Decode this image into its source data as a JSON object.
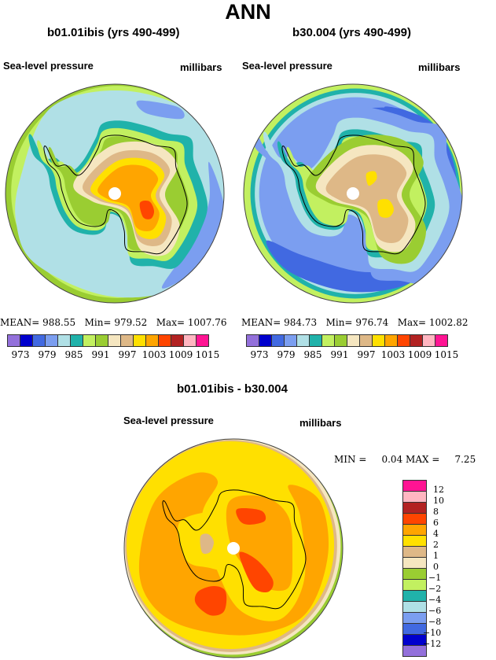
{
  "figure": {
    "title": "ANN",
    "variable": "Sea-level pressure",
    "units": "millibars"
  },
  "panels": [
    {
      "id": "case1",
      "title": "b01.01ibis (yrs 490-499)",
      "variable": "Sea-level pressure",
      "units": "millibars",
      "stats": {
        "mean_label": "MEAN=",
        "mean": "988.55",
        "min_label": "Min=",
        "min": "979.52",
        "max_label": "Max=",
        "max": "1007.76"
      }
    },
    {
      "id": "case2",
      "title": "b30.004 (yrs 490-499)",
      "variable": "Sea-level pressure",
      "units": "millibars",
      "stats": {
        "mean_label": "MEAN=",
        "mean": "984.73",
        "min_label": "Min=",
        "min": "976.74",
        "max_label": "Max=",
        "max": "1002.82"
      }
    },
    {
      "id": "diff",
      "title": "b01.01ibis - b30.004",
      "variable": "Sea-level pressure",
      "units": "millibars",
      "stats": {
        "min_label": "MIN =",
        "min": "0.04",
        "max_label": "MAX =",
        "max": "7.25"
      }
    }
  ],
  "colorbar_abs": {
    "colors": [
      "#9370DB",
      "#0000CD",
      "#4169E1",
      "#7B9EF0",
      "#B0E0E6",
      "#20B2AA",
      "#C2F060",
      "#9ACD32",
      "#F5E6C0",
      "#DEB887",
      "#FFE000",
      "#FFA500",
      "#FF4500",
      "#B22222",
      "#FFB6C1",
      "#FF1493"
    ],
    "tick_labels": [
      "973",
      "979",
      "985",
      "991",
      "997",
      "1003",
      "1009",
      "1015"
    ],
    "levels": [
      970,
      973,
      976,
      979,
      982,
      985,
      988,
      991,
      994,
      997,
      1000,
      1003,
      1006,
      1009,
      1012,
      1015
    ]
  },
  "colorbar_diff": {
    "colors": [
      "#FF1493",
      "#FFB6C1",
      "#B22222",
      "#FF4500",
      "#FFA500",
      "#FFE000",
      "#DEB887",
      "#F5E6C0",
      "#9ACD32",
      "#C2F060",
      "#20B2AA",
      "#B0E0E6",
      "#7B9EF0",
      "#4169E1",
      "#0000CD",
      "#9370DB"
    ],
    "tick_labels": [
      "12",
      "10",
      "8",
      "6",
      "4",
      "2",
      "1",
      "0",
      "−1",
      "−2",
      "−4",
      "−6",
      "−8",
      "−10",
      "−12"
    ],
    "levels": [
      -12,
      -10,
      -8,
      -6,
      -4,
      -2,
      -1,
      0,
      1,
      2,
      4,
      6,
      8,
      10,
      12
    ]
  },
  "chart_data": [
    {
      "type": "heatmap",
      "projection": "south-polar-stereographic",
      "title": "b01.01ibis (yrs 490-499)",
      "field": "Sea-level pressure (millibars)",
      "mean": 988.55,
      "min": 979.52,
      "max": 1007.76,
      "contour_fills_shown": [
        "988-991 outer ring",
        "982-985 ocean band",
        "985-988 trough",
        "979-982 patches",
        "991-1003 plateau",
        "1003-1006 interior max"
      ]
    },
    {
      "type": "heatmap",
      "projection": "south-polar-stereographic",
      "title": "b30.004 (yrs 490-499)",
      "field": "Sea-level pressure (millibars)",
      "mean": 984.73,
      "min": 976.74,
      "max": 1002.82,
      "contour_fills_shown": [
        "976-979 circumpolar trough",
        "979-982 ocean",
        "988-997 coast/plateau",
        "1000-1003 interior max"
      ]
    },
    {
      "type": "heatmap",
      "projection": "south-polar-stereographic",
      "title": "b01.01ibis - b30.004",
      "field": "Sea-level pressure difference (millibars)",
      "min": 0.04,
      "max": 7.25,
      "contour_fills_shown": [
        "0-1 edge",
        "1-2 edge",
        "2-4 broad",
        "4-6 ring",
        "6-8 local maxima"
      ]
    }
  ]
}
